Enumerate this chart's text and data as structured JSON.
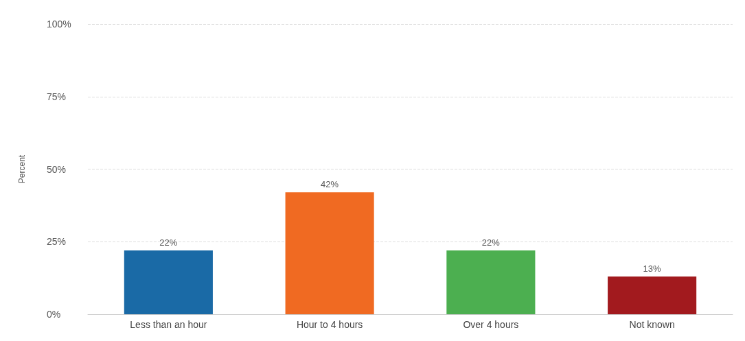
{
  "chart_data": {
    "type": "bar",
    "ylabel": "Percent",
    "categories": [
      "Less than an hour",
      "Hour to 4 hours",
      "Over 4 hours",
      "Not known"
    ],
    "values": [
      22,
      42,
      22,
      13
    ],
    "colors": [
      "#1a6aa6",
      "#f06a22",
      "#4caf50",
      "#a21a1e"
    ],
    "value_labels": [
      "22%",
      "42%",
      "22%",
      "13%"
    ],
    "ylim": [
      0,
      100
    ],
    "yticks": [
      {
        "value": 0,
        "label": "0%"
      },
      {
        "value": 25,
        "label": "25%"
      },
      {
        "value": 50,
        "label": "50%"
      },
      {
        "value": 75,
        "label": "75%"
      },
      {
        "value": 100,
        "label": "100%"
      }
    ],
    "grid": "y"
  }
}
